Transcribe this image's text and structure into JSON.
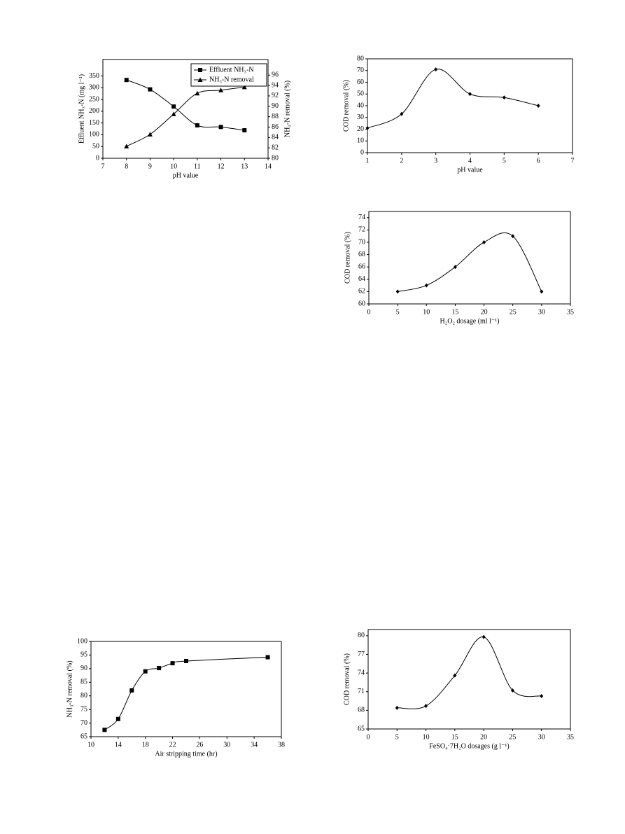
{
  "chart_data": [
    {
      "type": "line",
      "smooth": true,
      "legend": "upper right",
      "x_label": "pH value",
      "y_label": "Effluent NH₃-N (mg l⁻¹)",
      "y2_label": "NH₃-N removal (%)",
      "x": [
        8,
        9,
        10,
        11,
        12,
        13
      ],
      "series": [
        {
          "name": "Effluent NH₃-N",
          "color": "#000000",
          "marker": "square",
          "values": [
            333,
            293,
            220,
            140,
            133,
            119
          ]
        },
        {
          "name": "NH₃-N removal",
          "color": "#000000",
          "marker": "triangle",
          "axis": "y2",
          "values": [
            82.3,
            84.6,
            88.5,
            92.5,
            93.1,
            93.7
          ]
        }
      ],
      "xlim": [
        7,
        14
      ],
      "xticks": [
        7,
        8,
        9,
        10,
        11,
        12,
        13,
        14
      ],
      "ylim": [
        0,
        420
      ],
      "yticks": [
        0,
        50,
        100,
        150,
        200,
        250,
        300,
        350
      ],
      "y2lim": [
        80,
        99
      ],
      "y2ticks": [
        80,
        82,
        84,
        86,
        88,
        90,
        92,
        94,
        96
      ]
    },
    {
      "type": "line",
      "smooth": true,
      "x_label": "pH value",
      "y_label": "COD removal (%)",
      "x": [
        1,
        2,
        3,
        4,
        5,
        6
      ],
      "series": [
        {
          "name": null,
          "color": "#000000",
          "marker": "diamond",
          "values": [
            21,
            33,
            71,
            50,
            47,
            40
          ]
        }
      ],
      "xlim": [
        1,
        7
      ],
      "xticks": [
        1,
        2,
        3,
        4,
        5,
        6,
        7
      ],
      "ylim": [
        0,
        80
      ],
      "yticks": [
        0,
        10,
        20,
        30,
        40,
        50,
        60,
        70,
        80
      ]
    },
    {
      "type": "line",
      "smooth": true,
      "x_label": "H₂O₂ dosage (ml l⁻¹)",
      "y_label": "COD removal (%)",
      "x": [
        5,
        10,
        15,
        20,
        25,
        30
      ],
      "series": [
        {
          "name": null,
          "color": "#000000",
          "marker": "diamond",
          "values": [
            62,
            63,
            66,
            70,
            71,
            62
          ]
        }
      ],
      "xlim": [
        0,
        35
      ],
      "xticks": [
        0,
        5,
        10,
        15,
        20,
        25,
        30,
        35
      ],
      "ylim": [
        60,
        75
      ],
      "yticks": [
        60,
        62,
        64,
        66,
        68,
        70,
        72,
        74
      ]
    },
    {
      "type": "line",
      "smooth": true,
      "x_label": "Air stripping time (hr)",
      "y_label": "NH₃-N removal (%)",
      "x": [
        12,
        14,
        16,
        18,
        20,
        22,
        24,
        36
      ],
      "series": [
        {
          "name": null,
          "color": "#000000",
          "marker": "square",
          "values": [
            67.5,
            71.5,
            82,
            89,
            90.2,
            92,
            92.8,
            94.2
          ]
        }
      ],
      "xlim": [
        10,
        38
      ],
      "xticks": [
        10,
        14,
        18,
        22,
        26,
        30,
        34,
        38
      ],
      "ylim": [
        65,
        100
      ],
      "yticks": [
        65,
        70,
        75,
        80,
        85,
        90,
        95,
        100
      ]
    },
    {
      "type": "line",
      "smooth": true,
      "x_label": "FeSO₄·7H₂O dosages (g l⁻¹)",
      "y_label": "COD removal (%)",
      "x": [
        5,
        10,
        15,
        20,
        25,
        30
      ],
      "series": [
        {
          "name": null,
          "color": "#000000",
          "marker": "diamond",
          "values": [
            68.4,
            68.7,
            73.6,
            79.8,
            71.2,
            70.3
          ]
        }
      ],
      "xlim": [
        0,
        35
      ],
      "xticks": [
        0,
        5,
        10,
        15,
        20,
        25,
        30,
        35
      ],
      "ylim": [
        65,
        81
      ],
      "yticks": [
        65,
        68,
        71,
        74,
        77,
        80
      ]
    }
  ]
}
